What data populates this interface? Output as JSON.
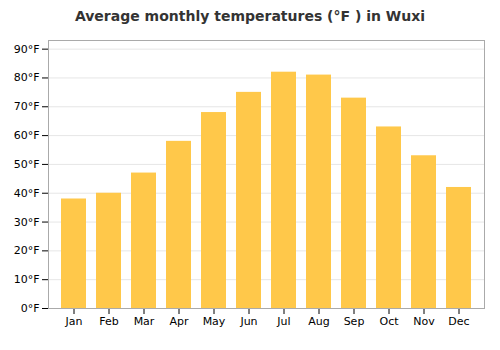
{
  "chart_data": {
    "type": "bar",
    "title": "Average monthly temperatures (°F ) in Wuxi",
    "categories": [
      "Jan",
      "Feb",
      "Mar",
      "Apr",
      "May",
      "Jun",
      "Jul",
      "Aug",
      "Sep",
      "Oct",
      "Nov",
      "Dec"
    ],
    "values": [
      38,
      40,
      47,
      58,
      68,
      75,
      82,
      81,
      73,
      63,
      53,
      42
    ],
    "color": "#FFC84A",
    "ylim": [
      0,
      93
    ],
    "yticks": [
      {
        "value": 0,
        "label": "0°F"
      },
      {
        "value": 10,
        "label": "10°F"
      },
      {
        "value": 20,
        "label": "20°F"
      },
      {
        "value": 30,
        "label": "30°F"
      },
      {
        "value": 40,
        "label": "40°F"
      },
      {
        "value": 50,
        "label": "50°F"
      },
      {
        "value": 60,
        "label": "60°F"
      },
      {
        "value": 70,
        "label": "70°F"
      },
      {
        "value": 80,
        "label": "80°F"
      },
      {
        "value": 90,
        "label": "90°F"
      }
    ],
    "grid": true
  }
}
